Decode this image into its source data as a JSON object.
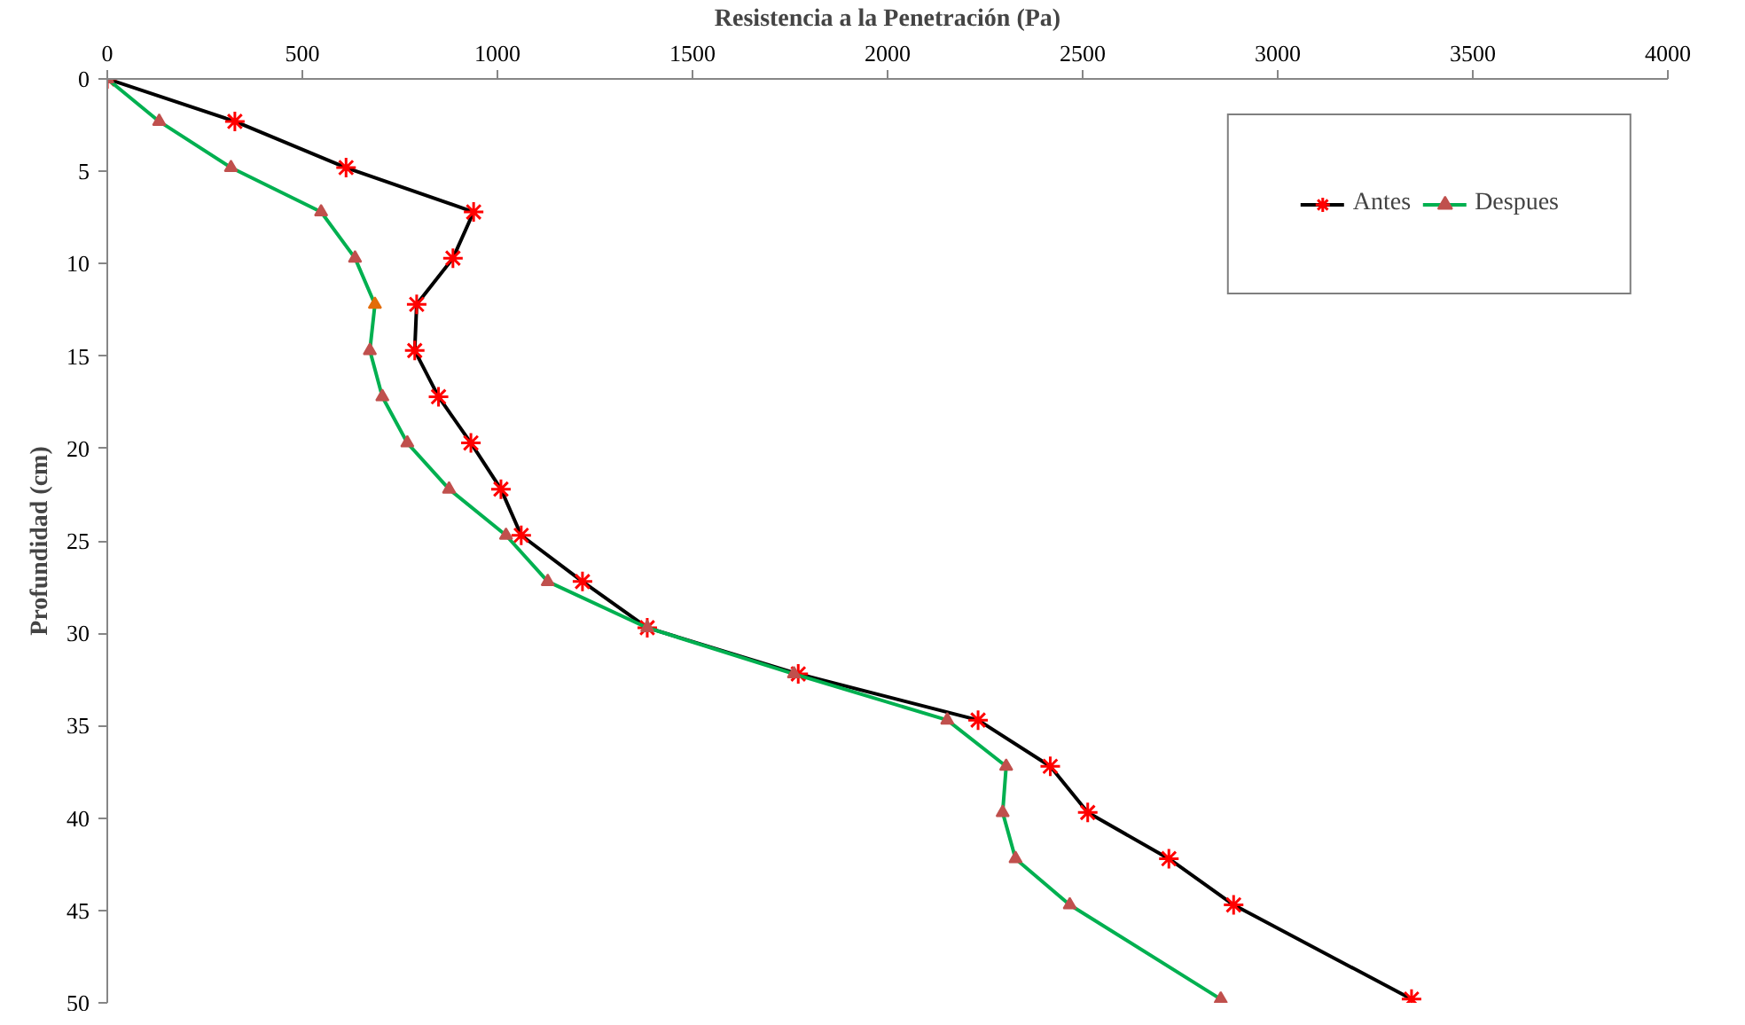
{
  "chart_data": {
    "type": "line",
    "xlabel": "Resistencia a la Penetración (Pa)",
    "ylabel": "Profundidad (cm)",
    "xlim": [
      0,
      4000
    ],
    "xticks": [
      0,
      500,
      1000,
      1500,
      2000,
      2500,
      3000,
      3500,
      4000
    ],
    "ylim": [
      50,
      0
    ],
    "yticks": [
      0,
      5,
      10,
      15,
      20,
      25,
      30,
      35,
      40,
      45,
      50
    ],
    "grid": false,
    "legend": "top right",
    "line_style": "solid",
    "series": [
      {
        "name": "Antes",
        "color": "#000000",
        "marker": "cross",
        "colors": [
          "#ff0000",
          "#ff0000",
          "#ff0000",
          "#ff0000",
          "#ff0000",
          "#ff0000",
          "#ff0000",
          "#ff0000",
          "#ff0000",
          "#ff0000",
          "#ff0000",
          "#ff0000",
          "#ff0000",
          "#ff0000",
          "#ff0000",
          "#ff0000",
          "#ff0000",
          "#ff0000",
          "#ff0000",
          "#ff0000"
        ],
        "x": [
          0,
          327,
          612,
          939,
          886,
          793,
          788,
          849,
          932,
          1009,
          1061,
          1218,
          1384,
          1771,
          2232,
          2417,
          2513,
          2721,
          2887,
          3343
        ],
        "values": [
          0,
          2.3,
          4.8,
          7.2,
          9.7,
          12.2,
          14.7,
          17.2,
          19.7,
          22.2,
          24.7,
          27.2,
          29.7,
          32.2,
          34.7,
          37.2,
          39.7,
          42.2,
          44.7,
          49.8
        ]
      },
      {
        "name": "Despues",
        "color": "#00b050",
        "marker": "triangle",
        "colors": [
          "#c0504d",
          "#c0504d",
          "#c0504d",
          "#c0504d",
          "#c0504d",
          "#e36c09",
          "#c0504d",
          "#c0504d",
          "#c0504d",
          "#c0504d",
          "#c0504d",
          "#c0504d",
          "#c0504d",
          "#c0504d",
          "#c0504d",
          "#c0504d",
          "#c0504d",
          "#c0504d",
          "#c0504d",
          "#c0504d"
        ],
        "x": [
          0,
          133,
          317,
          548,
          635,
          686,
          673,
          705,
          769,
          876,
          1022,
          1129,
          1384,
          1760,
          2153,
          2304,
          2295,
          2328,
          2467,
          2854
        ],
        "values": [
          0,
          2.3,
          4.8,
          7.2,
          9.7,
          12.2,
          14.7,
          17.2,
          19.7,
          22.2,
          24.7,
          27.2,
          29.7,
          32.2,
          34.7,
          37.2,
          39.7,
          42.2,
          44.7,
          49.8
        ]
      }
    ]
  }
}
